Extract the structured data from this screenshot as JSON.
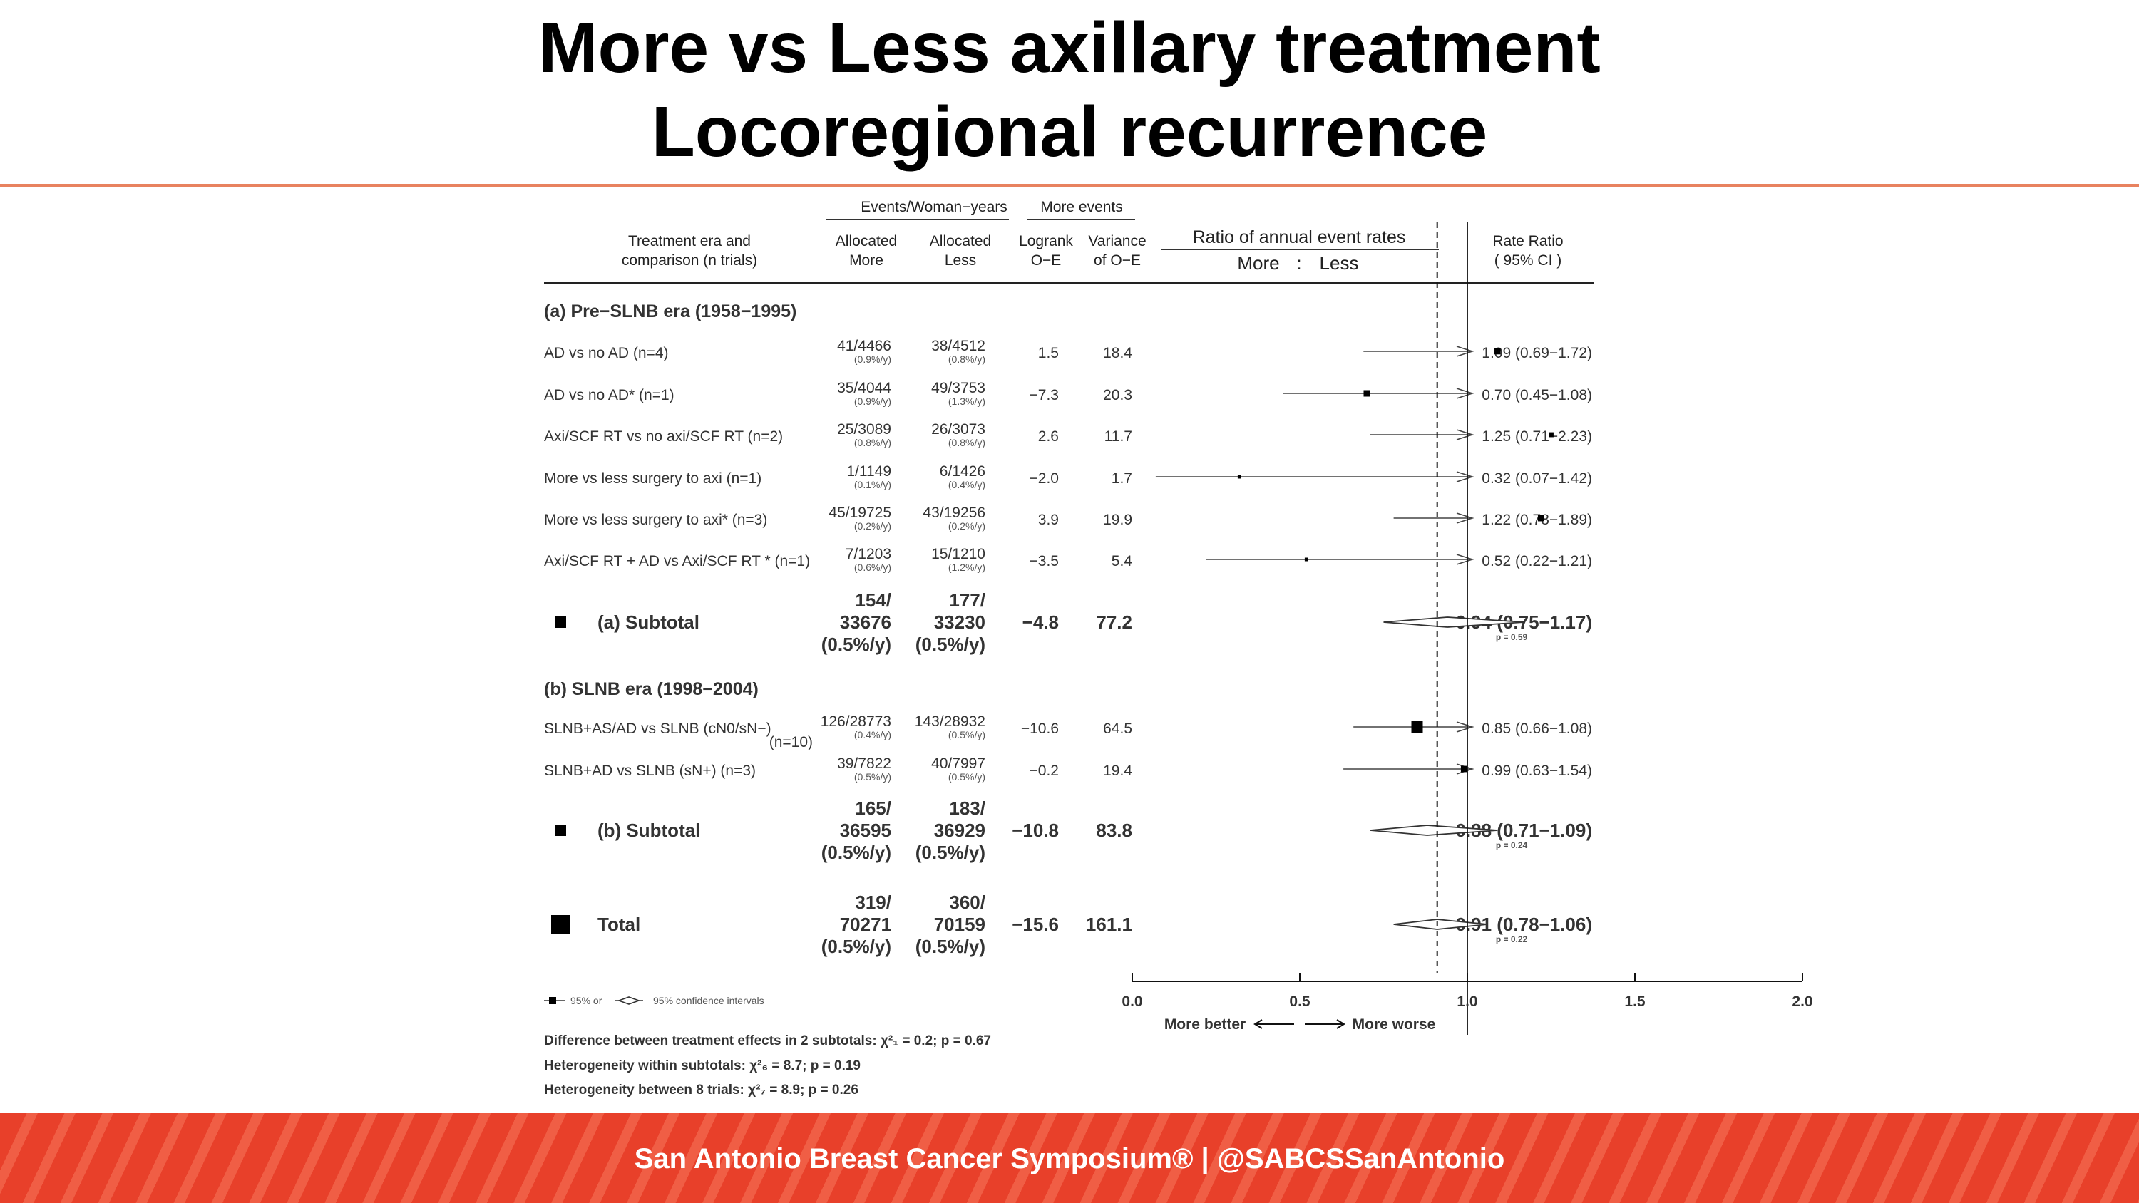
{
  "slide": {
    "title_line1": "More vs Less axillary treatment",
    "title_line2": "Locoregional recurrence"
  },
  "footer": {
    "text": "San Antonio Breast Cancer Symposium® | @SABCSSanAntonio"
  },
  "colors": {
    "footer_bg": "#e8402a",
    "title_rule": "#e8825f"
  },
  "chart_data": {
    "type": "forest",
    "plot_title": "Ratio of annual event rates",
    "plot_subtitle_left": "More",
    "plot_subtitle_sep": ":",
    "plot_subtitle_right": "Less",
    "headers": {
      "group_events": "Events/Woman−years",
      "group_more": "More events",
      "col1_line1": "Treatment era and",
      "col1_line2": "comparison (n trials)",
      "col2_line1": "Allocated",
      "col2_line2": "More",
      "col3_line1": "Allocated",
      "col3_line2": "Less",
      "col4_line1": "Logrank",
      "col4_line2": "O−E",
      "col5_line1": "Variance",
      "col5_line2": "of O−E",
      "col6_line1": "Rate Ratio",
      "col6_line2": "( 95% CI )"
    },
    "x_axis": {
      "ticks": [
        "0.0",
        "0.5",
        "1.0",
        "1.5",
        "2.0"
      ],
      "tick_values": [
        0,
        0.5,
        1,
        1.5,
        2
      ],
      "xlim": [
        0,
        2
      ],
      "reference_line": 1.0,
      "left_label": "More better",
      "right_label": "More worse"
    },
    "overall_dashed_line": 0.91,
    "sections": [
      {
        "heading": "(a) Pre−SLNB era (1958−1995)",
        "rows": [
          {
            "label": "AD vs no AD (n=4)",
            "more": "41/4466",
            "more_rate": "(0.9%/y)",
            "less": "38/4512",
            "less_rate": "(0.8%/y)",
            "oe": "1.5",
            "var": "18.4",
            "rr": 1.09,
            "lo": 0.69,
            "hi": 1.72,
            "rr_text": "1.09 (0.69−1.72)"
          },
          {
            "label": "AD vs no AD* (n=1)",
            "more": "35/4044",
            "more_rate": "(0.9%/y)",
            "less": "49/3753",
            "less_rate": "(1.3%/y)",
            "oe": "−7.3",
            "var": "20.3",
            "rr": 0.7,
            "lo": 0.45,
            "hi": 1.08,
            "rr_text": "0.70 (0.45−1.08)"
          },
          {
            "label": "Axi/SCF RT vs no axi/SCF RT (n=2)",
            "more": "25/3089",
            "more_rate": "(0.8%/y)",
            "less": "26/3073",
            "less_rate": "(0.8%/y)",
            "oe": "2.6",
            "var": "11.7",
            "rr": 1.25,
            "lo": 0.71,
            "hi": 2.23,
            "rr_text": "1.25 (0.71−2.23)"
          },
          {
            "label": "More vs less surgery to axi (n=1)",
            "more": "1/1149",
            "more_rate": "(0.1%/y)",
            "less": "6/1426",
            "less_rate": "(0.4%/y)",
            "oe": "−2.0",
            "var": "1.7",
            "rr": 0.32,
            "lo": 0.07,
            "hi": 1.42,
            "rr_text": "0.32 (0.07−1.42)"
          },
          {
            "label": "More vs less surgery to axi* (n=3)",
            "more": "45/19725",
            "more_rate": "(0.2%/y)",
            "less": "43/19256",
            "less_rate": "(0.2%/y)",
            "oe": "3.9",
            "var": "19.9",
            "rr": 1.22,
            "lo": 0.78,
            "hi": 1.89,
            "rr_text": "1.22 (0.78−1.89)"
          },
          {
            "label": "Axi/SCF RT + AD vs Axi/SCF RT * (n=1)",
            "more": "7/1203",
            "more_rate": "(0.6%/y)",
            "less": "15/1210",
            "less_rate": "(1.2%/y)",
            "oe": "−3.5",
            "var": "5.4",
            "rr": 0.52,
            "lo": 0.22,
            "hi": 1.21,
            "rr_text": "0.52 (0.22−1.21)"
          }
        ],
        "subtotal": {
          "label": "(a) Subtotal",
          "more": [
            "154/",
            "33676",
            "(0.5%/y)"
          ],
          "less": [
            "177/",
            "33230",
            "(0.5%/y)"
          ],
          "oe": "−4.8",
          "var": "77.2",
          "rr": 0.94,
          "lo": 0.75,
          "hi": 1.17,
          "rr_text": "0.94 (0.75−1.17)",
          "p": "p = 0.59"
        }
      },
      {
        "heading": "(b) SLNB era (1998−2004)",
        "rows": [
          {
            "label": "SLNB+AS/AD vs SLNB (cN0/sN−)",
            "label2": "(n=10)",
            "more": "126/28773",
            "more_rate": "(0.4%/y)",
            "less": "143/28932",
            "less_rate": "(0.5%/y)",
            "oe": "−10.6",
            "var": "64.5",
            "rr": 0.85,
            "lo": 0.66,
            "hi": 1.08,
            "rr_text": "0.85 (0.66−1.08)"
          },
          {
            "label": "SLNB+AD vs SLNB (sN+) (n=3)",
            "more": "39/7822",
            "more_rate": "(0.5%/y)",
            "less": "40/7997",
            "less_rate": "(0.5%/y)",
            "oe": "−0.2",
            "var": "19.4",
            "rr": 0.99,
            "lo": 0.63,
            "hi": 1.54,
            "rr_text": "0.99 (0.63−1.54)"
          }
        ],
        "subtotal": {
          "label": "(b) Subtotal",
          "more": [
            "165/",
            "36595",
            "(0.5%/y)"
          ],
          "less": [
            "183/",
            "36929",
            "(0.5%/y)"
          ],
          "oe": "−10.8",
          "var": "83.8",
          "rr": 0.88,
          "lo": 0.71,
          "hi": 1.09,
          "rr_text": "0.88 (0.71−1.09)",
          "p": "p = 0.24"
        }
      }
    ],
    "total": {
      "label": "Total",
      "more": [
        "319/",
        "70271",
        "(0.5%/y)"
      ],
      "less": [
        "360/",
        "70159",
        "(0.5%/y)"
      ],
      "oe": "−15.6",
      "var": "161.1",
      "rr": 0.91,
      "lo": 0.78,
      "hi": 1.06,
      "rr_text": "0.91 (0.78−1.06)",
      "p": "p = 0.22"
    },
    "legend": {
      "square_label": "95% or",
      "diamond_label": "95% confidence intervals"
    },
    "footnotes": [
      "Difference between treatment effects in 2 subtotals: χ²₁ = 0.2; p = 0.67",
      "Heterogeneity within subtotals: χ²₆ = 8.7; p = 0.19",
      "Heterogeneity between 8 trials: χ²₇ = 8.9; p = 0.26"
    ]
  }
}
